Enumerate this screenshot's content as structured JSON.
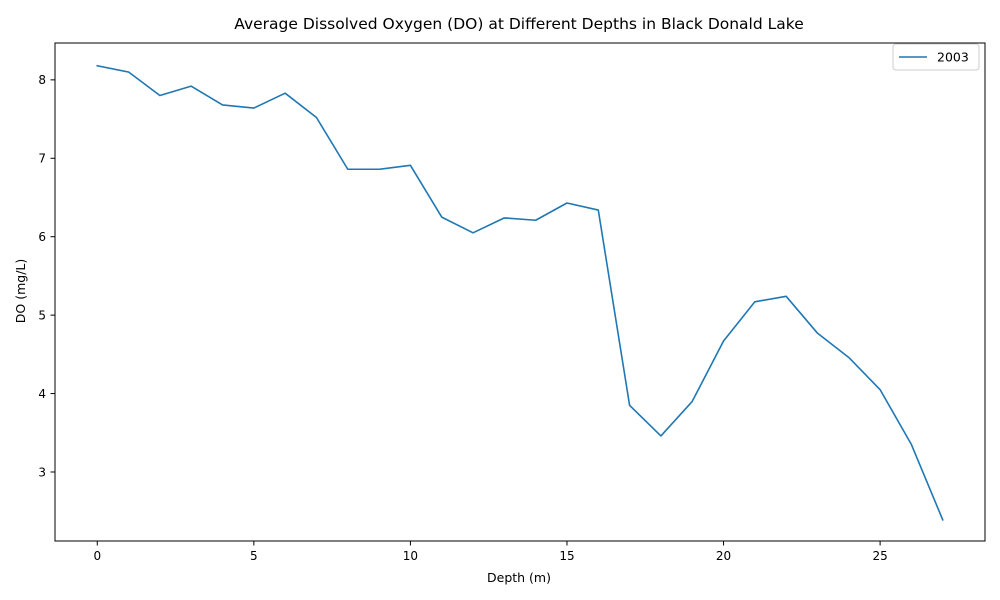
{
  "chart_data": {
    "type": "line",
    "title": "Average Dissolved Oxygen (DO) at Different Depths in Black Donald Lake",
    "xlabel": "Depth (m)",
    "ylabel": "DO (mg/L)",
    "xlim": [
      -1.35,
      28.35
    ],
    "ylim": [
      2.12,
      8.47
    ],
    "xticks": [
      0,
      5,
      10,
      15,
      20,
      25
    ],
    "yticks": [
      3,
      4,
      5,
      6,
      7,
      8
    ],
    "grid": false,
    "legend_position": "top-right",
    "series": [
      {
        "name": "2003",
        "color": "#1f77b4",
        "x": [
          0,
          1,
          2,
          3,
          4,
          5,
          6,
          7,
          8,
          9,
          10,
          11,
          12,
          13,
          14,
          15,
          16,
          17,
          18,
          19,
          20,
          21,
          22,
          23,
          24,
          25,
          26,
          27
        ],
        "y": [
          8.18,
          8.1,
          7.8,
          7.92,
          7.68,
          7.64,
          7.83,
          7.52,
          6.86,
          6.86,
          6.91,
          6.25,
          6.05,
          6.24,
          6.21,
          6.43,
          6.34,
          3.85,
          3.46,
          3.9,
          4.67,
          5.17,
          5.24,
          4.77,
          4.46,
          4.05,
          3.35,
          2.39
        ]
      }
    ]
  }
}
